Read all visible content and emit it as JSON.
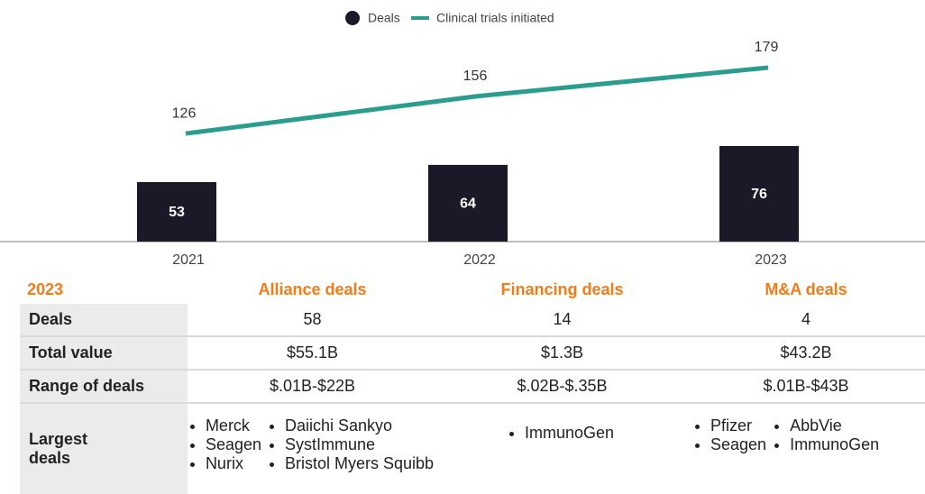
{
  "chart_data": {
    "type": "bar",
    "categories": [
      "2021",
      "2022",
      "2023"
    ],
    "series": [
      {
        "name": "Deals",
        "type": "bar",
        "color": "#1b1827",
        "values": [
          53,
          64,
          76
        ]
      },
      {
        "name": "Clinical trials initiated",
        "type": "line",
        "color": "#2a9d8f",
        "values": [
          126,
          156,
          179
        ]
      }
    ]
  },
  "table": {
    "header": [
      "2023",
      "Alliance deals",
      "Financing deals",
      "M&A deals"
    ],
    "rows": [
      [
        "Deals",
        "58",
        "14",
        "4"
      ],
      [
        "Total value",
        "$55.1B",
        "$1.3B",
        "$43.2B"
      ],
      [
        "Range of deals",
        "$.01B-$22B",
        "$.02B-$.35B",
        "$.01B-$43B"
      ]
    ],
    "largest": {
      "label": "Largest deals",
      "cells": [
        [
          [
            "Merck",
            "Seagen",
            "Nurix"
          ],
          [
            "Daiichi Sankyo",
            "SystImmune",
            "Bristol Myers Squibb"
          ]
        ],
        [
          [
            "ImmunoGen"
          ]
        ],
        [
          [
            "Pfizer",
            "Seagen"
          ],
          [
            "AbbVie",
            "ImmunoGen"
          ]
        ]
      ]
    }
  }
}
